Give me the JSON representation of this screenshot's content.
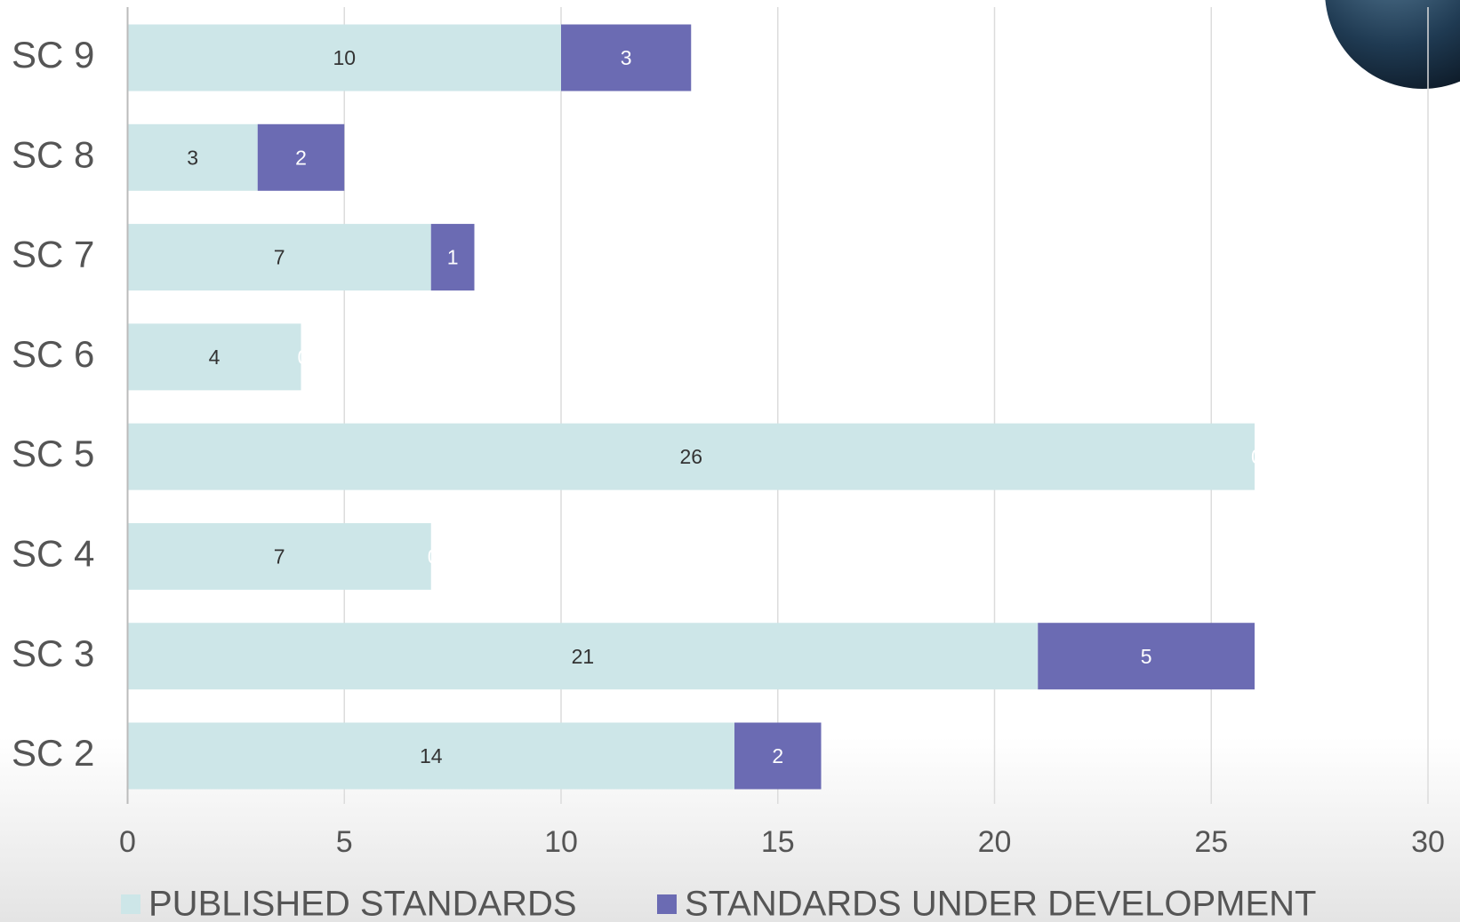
{
  "chart_data": {
    "type": "stacked-barh",
    "categories": [
      "SC 2",
      "SC 3",
      "SC 4",
      "SC 5",
      "SC 6",
      "SC 7",
      "SC 8",
      "SC 9"
    ],
    "series": [
      {
        "name": "PUBLISHED STANDARDS",
        "color": "#cde6e8",
        "values": [
          14,
          21,
          7,
          26,
          4,
          7,
          3,
          10
        ]
      },
      {
        "name": "STANDARDS UNDER DEVELOPMENT",
        "color": "#6b6bb3",
        "values": [
          2,
          5,
          0,
          0,
          0,
          1,
          2,
          3
        ]
      }
    ],
    "xlim": [
      0,
      30
    ],
    "xticks": [
      0,
      5,
      10,
      15,
      20,
      25,
      30
    ],
    "grid": true,
    "legend": "bottom"
  }
}
